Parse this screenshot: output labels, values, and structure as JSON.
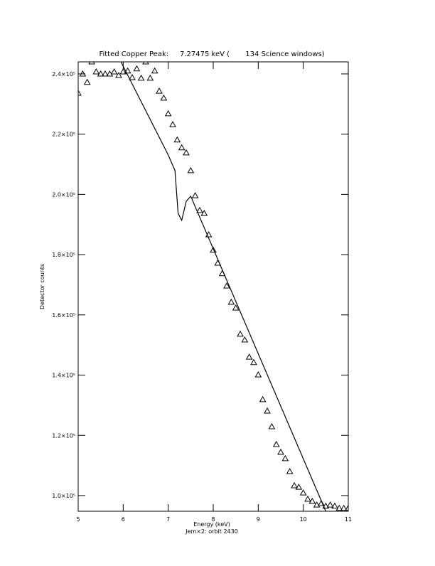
{
  "chart_data": {
    "type": "scatter",
    "title": "Fitted Copper Peak:     7.27475 keV (       134 Science windows)",
    "xlabel": "Energy (keV)",
    "subtitle": "Jem×2: orbit 2430",
    "ylabel": "Detector counts",
    "xlim": [
      5,
      11
    ],
    "ylim": [
      94800,
      244000
    ],
    "xticks": [
      5,
      6,
      7,
      8,
      9,
      10,
      11
    ],
    "yticks": [
      {
        "value": 100000,
        "label": "1.0×10⁵"
      },
      {
        "value": 120000,
        "label": "1.2×10⁵"
      },
      {
        "value": 140000,
        "label": "1.4×10⁵"
      },
      {
        "value": 160000,
        "label": "1.6×10⁵"
      },
      {
        "value": 180000,
        "label": "1.8×10⁵"
      },
      {
        "value": 200000,
        "label": "2.0×10⁵"
      },
      {
        "value": 220000,
        "label": "2.2×10⁵"
      },
      {
        "value": 240000,
        "label": "2.4×10⁵"
      }
    ],
    "color": "#000000",
    "series": [
      {
        "mode": "markers",
        "marker": "triangle",
        "x": [
          5.0,
          5.1,
          5.2,
          5.3,
          5.4,
          5.5,
          5.6,
          5.7,
          5.8,
          5.9,
          6.0,
          6.1,
          6.2,
          6.3,
          6.4,
          6.5,
          6.6,
          6.7,
          6.8,
          6.9,
          7.0,
          7.1,
          7.2,
          7.3,
          7.4,
          7.5,
          7.6,
          7.7,
          7.8,
          7.9,
          8.0,
          8.1,
          8.2,
          8.3,
          8.4,
          8.5,
          8.6,
          8.7,
          8.8,
          8.9,
          9.0,
          9.1,
          9.2,
          9.3,
          9.4,
          9.5,
          9.6,
          9.7,
          9.8,
          9.9,
          10.0,
          10.1,
          10.2,
          10.3,
          10.4,
          10.5,
          10.6,
          10.7,
          10.8,
          10.9,
          11.0
        ],
        "values": [
          233600,
          240000,
          237200,
          244000,
          240700,
          240000,
          240000,
          240000,
          240700,
          239500,
          240700,
          241000,
          238800,
          241700,
          238600,
          244000,
          238600,
          241000,
          234300,
          232000,
          226800,
          223200,
          218100,
          215500,
          213800,
          207900,
          199600,
          194700,
          193700,
          186600,
          181500,
          177200,
          173700,
          169600,
          164200,
          162300,
          153600,
          151700,
          146000,
          144200,
          140100,
          131900,
          128100,
          122900,
          117000,
          114400,
          112300,
          108000,
          103300,
          102800,
          100900,
          98800,
          98100,
          96900,
          97400,
          96500,
          96900,
          96500,
          95800,
          95800,
          95800
        ]
      },
      {
        "mode": "line",
        "x": [
          5.95,
          7.0,
          7.15,
          7.22,
          7.3,
          7.4,
          7.5,
          10.5
        ],
        "values": [
          244000,
          213100,
          207900,
          193700,
          191400,
          197700,
          199400,
          94800
        ]
      }
    ]
  }
}
